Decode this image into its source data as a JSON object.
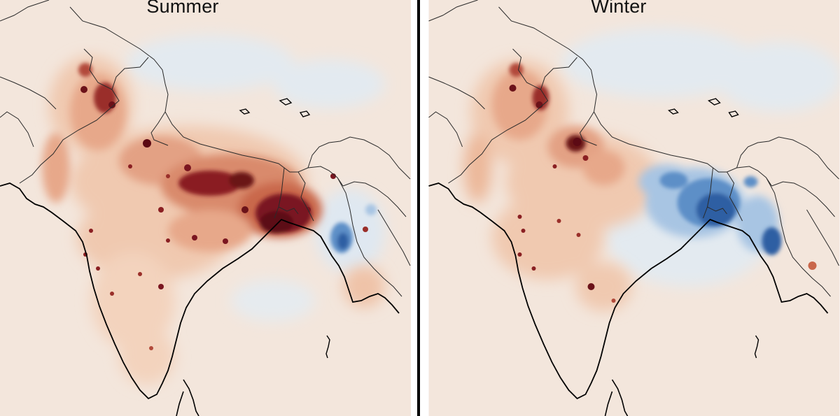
{
  "panels": [
    {
      "title": "Summer"
    },
    {
      "title": "Winter"
    }
  ],
  "colors": {
    "background": "#f3e6dc",
    "pale_red": "#f0c9b0",
    "light_red": "#e7a88a",
    "mid_red": "#c9674b",
    "dark_red": "#8a1f22",
    "darkest_red": "#5c0a14",
    "pale_blue": "#dfe8f1",
    "light_blue": "#a8c5e3",
    "mid_blue": "#5d8fc7",
    "dark_blue": "#2e5ea3",
    "coastline": "#000000",
    "borders": "#2a2a2a"
  }
}
